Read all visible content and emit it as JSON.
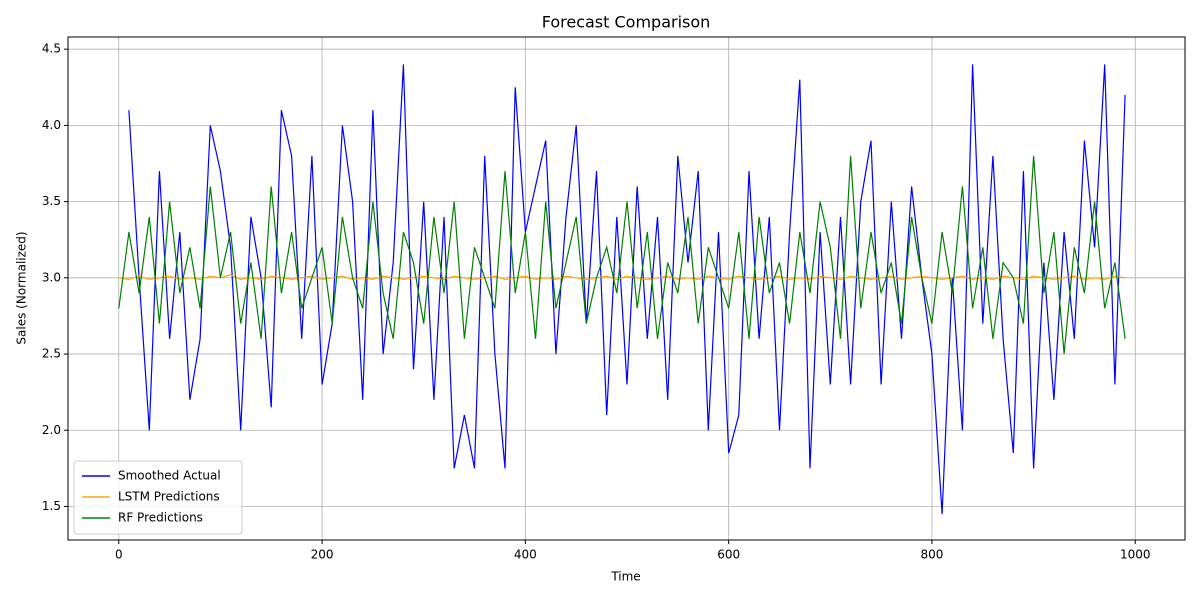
{
  "chart_data": {
    "type": "line",
    "title": "Forecast Comparison",
    "x_label": "Time",
    "y_label": "Sales (Normalized)",
    "x": [
      0,
      10,
      20,
      30,
      40,
      50,
      60,
      70,
      80,
      90,
      100,
      110,
      120,
      130,
      140,
      150,
      160,
      170,
      180,
      190,
      200,
      210,
      220,
      230,
      240,
      250,
      260,
      270,
      280,
      290,
      300,
      310,
      320,
      330,
      340,
      350,
      360,
      370,
      380,
      390,
      400,
      410,
      420,
      430,
      440,
      450,
      460,
      470,
      480,
      490,
      500,
      510,
      520,
      530,
      540,
      550,
      560,
      570,
      580,
      590,
      600,
      610,
      620,
      630,
      640,
      650,
      660,
      670,
      680,
      690,
      700,
      710,
      720,
      730,
      740,
      750,
      760,
      770,
      780,
      790,
      800,
      810,
      820,
      830,
      840,
      850,
      860,
      870,
      880,
      890,
      900,
      910,
      920,
      930,
      940,
      950,
      960,
      970,
      980,
      990
    ],
    "series": [
      {
        "name": "Smoothed Actual",
        "color": "#0000ff",
        "values": [
          null,
          4.1,
          3.0,
          2.0,
          3.7,
          2.6,
          3.3,
          2.2,
          2.6,
          4.0,
          3.7,
          3.2,
          2.0,
          3.4,
          3.0,
          2.15,
          4.1,
          3.8,
          2.6,
          3.8,
          2.3,
          2.7,
          4.0,
          3.5,
          2.2,
          4.1,
          2.5,
          3.1,
          4.4,
          2.4,
          3.5,
          2.2,
          3.4,
          1.75,
          2.1,
          1.75,
          3.8,
          2.5,
          1.75,
          4.25,
          3.3,
          3.6,
          3.9,
          2.5,
          3.4,
          4.0,
          2.7,
          3.7,
          2.1,
          3.4,
          2.3,
          3.6,
          2.6,
          3.4,
          2.2,
          3.8,
          3.1,
          3.7,
          2.0,
          3.3,
          1.85,
          2.1,
          3.7,
          2.6,
          3.4,
          2.0,
          3.3,
          4.3,
          1.75,
          3.3,
          2.3,
          3.4,
          2.3,
          3.5,
          3.9,
          2.3,
          3.5,
          2.6,
          3.6,
          3.0,
          2.5,
          1.45,
          3.0,
          2.0,
          4.4,
          2.7,
          3.8,
          2.6,
          1.85,
          3.7,
          1.75,
          3.1,
          2.2,
          3.3,
          2.6,
          3.9,
          3.2,
          4.4,
          2.3,
          4.2
        ]
      },
      {
        "name": "LSTM Predictions",
        "color": "#ffa500",
        "values": [
          3.0,
          2.99,
          3.01,
          2.99,
          3.0,
          3.01,
          2.99,
          3.0,
          2.99,
          3.01,
          3.0,
          3.02,
          2.99,
          3.0,
          2.99,
          3.01,
          3.0,
          2.99,
          3.0,
          3.01,
          2.99,
          3.0,
          3.01,
          2.99,
          3.0,
          2.99,
          3.01,
          3.0,
          2.99,
          3.0,
          3.01,
          3.0,
          2.99,
          3.01,
          3.0,
          2.99,
          3.0,
          3.01,
          2.99,
          3.0,
          3.01,
          2.99,
          3.0,
          2.99,
          3.01,
          3.0,
          2.99,
          3.0,
          3.01,
          2.99,
          3.01,
          3.0,
          2.99,
          3.0,
          3.01,
          2.99,
          3.0,
          2.99,
          3.01,
          3.0,
          2.99,
          3.01,
          3.0,
          2.99,
          3.0,
          3.01,
          2.99,
          3.0,
          2.99,
          3.01,
          3.0,
          2.99,
          3.01,
          3.0,
          2.99,
          3.0,
          3.01,
          2.99,
          3.0,
          3.01,
          3.0,
          2.99,
          3.0,
          3.01,
          2.99,
          3.0,
          2.99,
          3.01,
          3.0,
          2.99,
          3.01,
          3.0,
          2.99,
          3.0,
          3.01,
          2.99,
          3.0,
          2.99,
          3.01,
          3.0
        ]
      },
      {
        "name": "RF Predictions",
        "color": "#008000",
        "values": [
          2.8,
          3.3,
          2.9,
          3.4,
          2.7,
          3.5,
          2.9,
          3.2,
          2.8,
          3.6,
          3.0,
          3.3,
          2.7,
          3.1,
          2.6,
          3.6,
          2.9,
          3.3,
          2.8,
          3.0,
          3.2,
          2.7,
          3.4,
          3.0,
          2.8,
          3.5,
          2.9,
          2.6,
          3.3,
          3.1,
          2.7,
          3.4,
          2.9,
          3.5,
          2.6,
          3.2,
          3.0,
          2.8,
          3.7,
          2.9,
          3.3,
          2.6,
          3.5,
          2.8,
          3.1,
          3.4,
          2.7,
          3.0,
          3.2,
          2.9,
          3.5,
          2.8,
          3.3,
          2.6,
          3.1,
          2.9,
          3.4,
          2.7,
          3.2,
          3.0,
          2.8,
          3.3,
          2.6,
          3.4,
          2.9,
          3.1,
          2.7,
          3.3,
          2.9,
          3.5,
          3.2,
          2.6,
          3.8,
          2.8,
          3.3,
          2.9,
          3.1,
          2.7,
          3.4,
          3.0,
          2.7,
          3.3,
          2.9,
          3.6,
          2.8,
          3.2,
          2.6,
          3.1,
          3.0,
          2.7,
          3.8,
          2.9,
          3.3,
          2.5,
          3.2,
          2.9,
          3.5,
          2.8,
          3.1,
          2.6
        ]
      }
    ],
    "xlim": [
      -49.95,
      1048.95
    ],
    "ylim": [
      1.28,
      4.58
    ],
    "xticks": [
      0,
      200,
      400,
      600,
      800,
      1000
    ],
    "yticks": [
      {
        "value": 1.5,
        "label": "1.5"
      },
      {
        "value": 2.0,
        "label": "2.0"
      },
      {
        "value": 2.5,
        "label": "2.5"
      },
      {
        "value": 3.0,
        "label": "3.0"
      },
      {
        "value": 3.5,
        "label": "3.5"
      },
      {
        "value": 4.0,
        "label": "4.0"
      },
      {
        "value": 4.5,
        "label": "4.5"
      }
    ],
    "grid": true,
    "legend": "lower left"
  }
}
